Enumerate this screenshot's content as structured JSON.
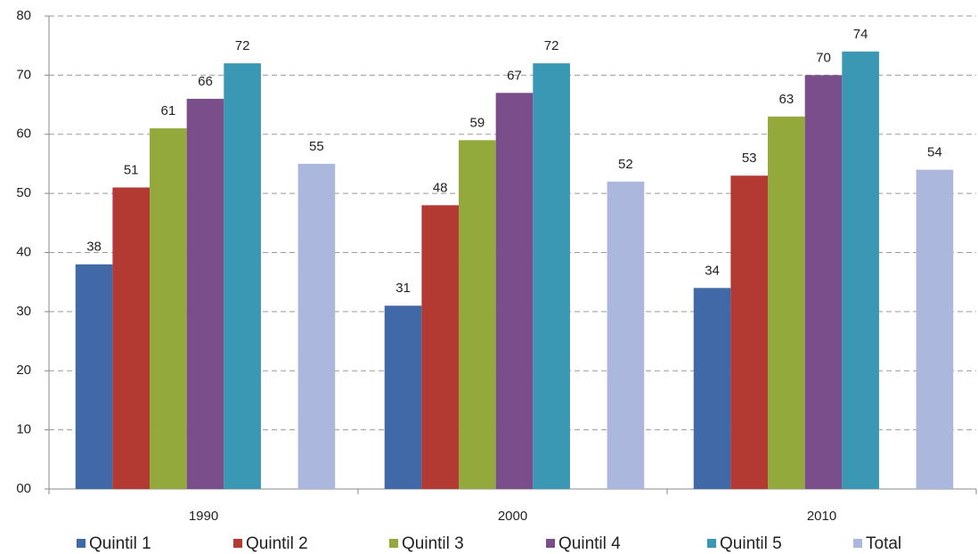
{
  "chart_data": {
    "type": "bar",
    "categories": [
      "1990",
      "2000",
      "2010"
    ],
    "series": [
      {
        "name": "Quintil 1",
        "color": "#4169a8",
        "values": [
          38,
          31,
          34
        ]
      },
      {
        "name": "Quintil 2",
        "color": "#b33a33",
        "values": [
          51,
          48,
          53
        ]
      },
      {
        "name": "Quintil 3",
        "color": "#93a93c",
        "values": [
          61,
          59,
          63
        ]
      },
      {
        "name": "Quintil 4",
        "color": "#7a4e8a",
        "values": [
          66,
          67,
          70
        ]
      },
      {
        "name": "Quintil 5",
        "color": "#3a98b4",
        "values": [
          72,
          72,
          74
        ]
      },
      {
        "name": "Total",
        "color": "#abb7dc",
        "values": [
          55,
          52,
          54
        ]
      }
    ],
    "ylim": [
      0,
      80
    ],
    "yticks": [
      {
        "value": 0,
        "label": "00"
      },
      10,
      20,
      30,
      40,
      50,
      60,
      70,
      80
    ],
    "grid": true,
    "legend": "bottom"
  }
}
